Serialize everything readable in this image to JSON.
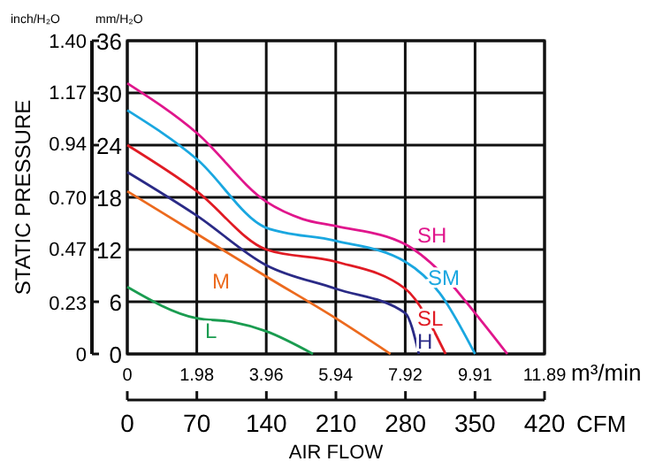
{
  "chart_data": {
    "type": "line",
    "ylabel": "STATIC PRESSURE",
    "xlabel": "AIR FLOW",
    "annotations": [
      "inch/H₂O",
      "mm/H₂O",
      "m³/min",
      "CFM"
    ],
    "xlim": [
      0,
      11.89
    ],
    "xticks": [
      0,
      1.98,
      3.96,
      5.94,
      7.92,
      9.91,
      11.89
    ],
    "x2lim": [
      0,
      420
    ],
    "x2ticks": [
      0,
      70,
      140,
      210,
      280,
      350,
      420
    ],
    "y2lim": [
      0,
      36
    ],
    "y2ticks": [
      0,
      6,
      12,
      18,
      24,
      30,
      36
    ],
    "ylim": [
      0,
      1.4
    ],
    "yticks": [
      0,
      0.23,
      0.47,
      {
        "value": 0.7,
        "label": "0.70"
      },
      0.94,
      1.17,
      {
        "value": 1.4,
        "label": "1.40"
      }
    ],
    "grid": true,
    "marker": "none",
    "line_style": "solid",
    "series": [
      {
        "name": "SH",
        "axis": "y2",
        "color": "#e0168c",
        "x": [
          0,
          1.98,
          3.96,
          5.0,
          5.94,
          7.92,
          8.9,
          9.91,
          10.83
        ],
        "values": [
          31.1,
          25.4,
          17.5,
          15.5,
          14.7,
          12.6,
          9.5,
          4.7,
          0
        ]
      },
      {
        "name": "SM",
        "axis": "y2",
        "color": "#1aa7e0",
        "x": [
          0,
          1.98,
          3.96,
          5.94,
          7.92,
          8.9,
          9.91
        ],
        "values": [
          28.0,
          22.4,
          14.5,
          13.0,
          10.6,
          7.0,
          0
        ]
      },
      {
        "name": "SL",
        "axis": "y2",
        "color": "#e01b24",
        "x": [
          0,
          1.98,
          3.96,
          5.94,
          7.92,
          9.07
        ],
        "values": [
          24.0,
          18.7,
          12.0,
          10.6,
          7.5,
          0
        ]
      },
      {
        "name": "H",
        "axis": "y2",
        "color": "#2a2a86",
        "x": [
          0,
          1.98,
          3.96,
          5.94,
          7.92,
          8.31
        ],
        "values": [
          20.9,
          15.9,
          10.2,
          7.5,
          4.7,
          0
        ]
      },
      {
        "name": "M",
        "axis": "y2",
        "color": "#ec6a1e",
        "x": [
          0,
          1.98,
          3.96,
          5.94,
          7.5
        ],
        "values": [
          18.7,
          13.8,
          8.9,
          4.1,
          0
        ]
      },
      {
        "name": "L",
        "axis": "y2",
        "color": "#1a9c50",
        "x": [
          0,
          1.98,
          2.97,
          3.96,
          5.29
        ],
        "values": [
          7.7,
          4.1,
          3.7,
          2.6,
          0
        ]
      }
    ]
  }
}
